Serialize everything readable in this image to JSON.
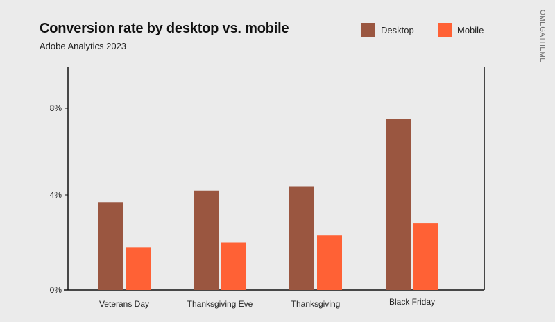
{
  "watermark": "OMEGATHEME",
  "chart_data": {
    "type": "bar",
    "title": "Conversion rate by desktop vs. mobile",
    "subtitle": "Adobe Analytics 2023",
    "categories": [
      "Veterans Day",
      "Thanksgiving Eve",
      "Thanksgiving",
      "Black Friday"
    ],
    "series": [
      {
        "name": "Desktop",
        "color": "#9a5640",
        "values": [
          3.7,
          4.2,
          4.4,
          7.5
        ]
      },
      {
        "name": "Mobile",
        "color": "#ff6135",
        "values": [
          1.8,
          2.0,
          2.3,
          2.8
        ]
      }
    ],
    "yticks": [
      0,
      4,
      8
    ],
    "ytick_labels": [
      "0%",
      "4%",
      "8%"
    ],
    "ylim": [
      0,
      10
    ],
    "grid": false,
    "legend_position": "top-right",
    "xlabel": "",
    "ylabel": ""
  }
}
